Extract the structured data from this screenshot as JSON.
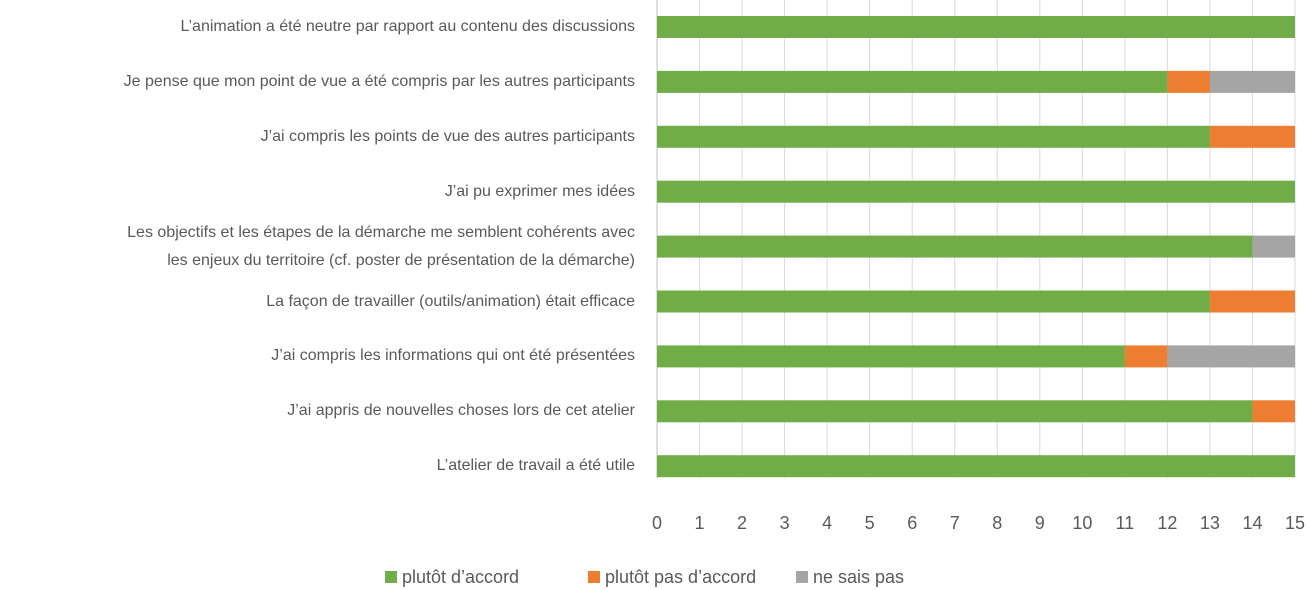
{
  "chart_data": {
    "type": "stacked_bar_horizontal",
    "categories": [
      "L’animation a été neutre par rapport au contenu des  discussions",
      "Je pense que mon point de vue a été compris par les autres participants",
      "J’ai compris les points de vue des autres participants ",
      "J’ai pu exprimer mes idées",
      "Les objectifs et les étapes de la démarche me semblent cohérents avec\nles enjeux du territoire (cf. poster de présentation de la démarche)",
      "La façon de travailler (outils/animation) était efficace",
      "J’ai compris les informations qui ont été présentées ",
      "J’ai appris de nouvelles choses lors de cet atelier",
      "L’atelier de travail a été utile"
    ],
    "series": [
      {
        "name": "plutôt d’accord",
        "color": "#70ad47",
        "values": [
          15,
          12,
          13,
          15,
          14,
          13,
          11,
          14,
          15
        ]
      },
      {
        "name": "plutôt pas d’accord",
        "color": "#ed7d31",
        "values": [
          0,
          1,
          2,
          0,
          0,
          2,
          1,
          1,
          0
        ]
      },
      {
        "name": "ne sais pas",
        "color": "#a5a5a5",
        "values": [
          0,
          2,
          0,
          0,
          1,
          0,
          3,
          0,
          0
        ]
      }
    ],
    "xlim": [
      0,
      15
    ],
    "xticks": [
      0,
      1,
      2,
      3,
      4,
      5,
      6,
      7,
      8,
      9,
      10,
      11,
      12,
      13,
      14,
      15
    ],
    "grid": true,
    "legend": "bottom"
  }
}
